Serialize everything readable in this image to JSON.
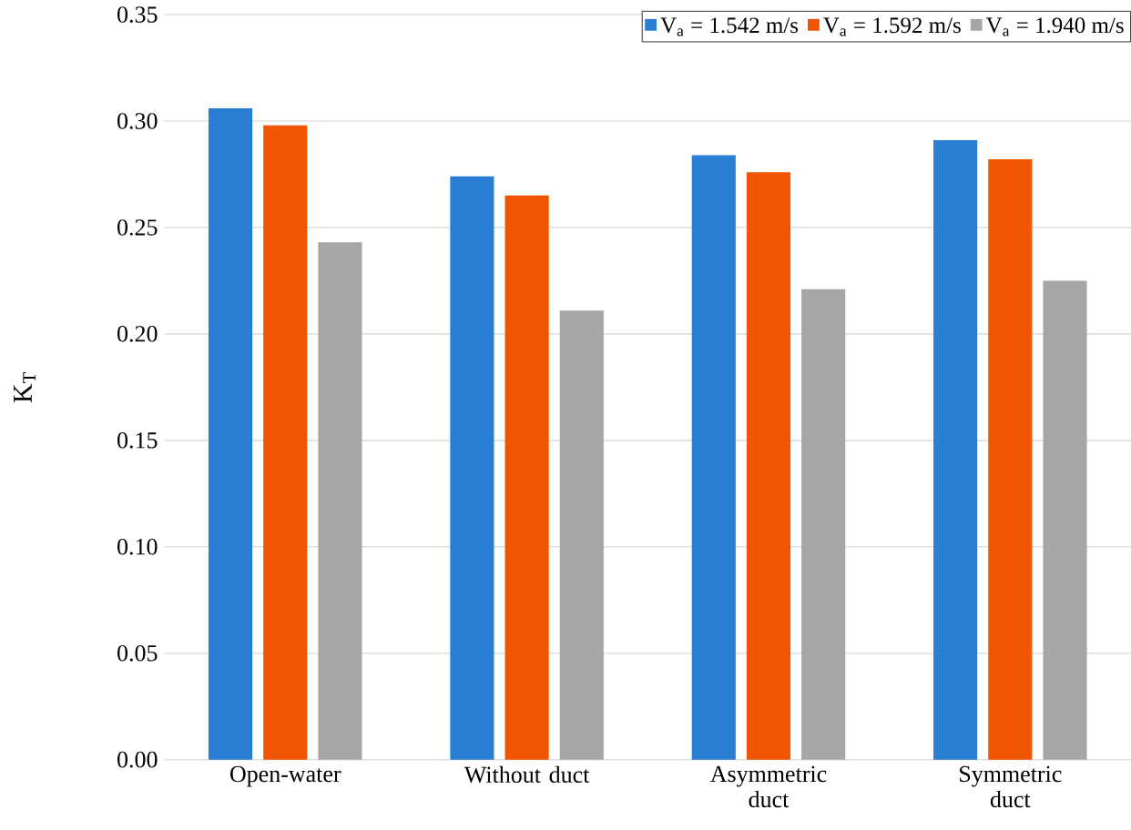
{
  "chart_data": {
    "type": "bar",
    "ylabel": "K$_{T}$",
    "categories": [
      "Open-water",
      "Without duct",
      "Asymmetric duct",
      "Symmetric duct"
    ],
    "series": [
      {
        "name": "V$_{a}$ = 1.542 m/s",
        "color": "#2a7fd4",
        "values": [
          0.306,
          0.274,
          0.284,
          0.291
        ]
      },
      {
        "name": "V$_{a}$ = 1.592 m/s",
        "color": "#f05500",
        "values": [
          0.298,
          0.265,
          0.276,
          0.282
        ]
      },
      {
        "name": "V$_{a}$ = 1.940 m/s",
        "color": "#a6a6a6",
        "values": [
          0.243,
          0.211,
          0.221,
          0.225
        ]
      }
    ],
    "ylim": [
      0,
      0.35
    ],
    "yticks": [
      {
        "value": 0,
        "label": "0.00"
      },
      0.05,
      {
        "value": 0.1,
        "label": "0.10"
      },
      0.15,
      {
        "value": 0.2,
        "label": "0.20"
      },
      0.25,
      {
        "value": 0.3,
        "label": "0.30"
      },
      0.35
    ],
    "grid": "y",
    "legend": "top right"
  }
}
